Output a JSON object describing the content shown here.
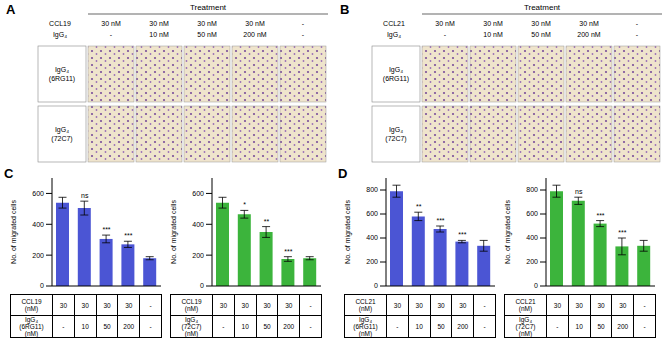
{
  "figure": {
    "image_panels": [
      {
        "letter": "A",
        "header": "Treatment",
        "row_names": [
          "CCL19",
          "IgG₄"
        ],
        "columns": [
          [
            "30 nM",
            "-"
          ],
          [
            "30 nM",
            "10 nM"
          ],
          [
            "30 nM",
            "50 nM"
          ],
          [
            "30 nM",
            "200 nM"
          ],
          [
            "-",
            "-"
          ]
        ],
        "rows": [
          "IgG₄ (6RG11)",
          "IgG₄ (72C7)"
        ]
      },
      {
        "letter": "B",
        "header": "Treatment",
        "row_names": [
          "CCL21",
          "IgG₄"
        ],
        "columns": [
          [
            "30 nM",
            "-"
          ],
          [
            "30 nM",
            "10 nM"
          ],
          [
            "30 nM",
            "50 nM"
          ],
          [
            "30 nM",
            "200 nM"
          ],
          [
            "-",
            "-"
          ]
        ],
        "rows": [
          "IgG₄ (6RG11)",
          "IgG₄ (72C7)"
        ]
      }
    ],
    "chart_panels": [
      "C",
      "D"
    ]
  },
  "chart_data": [
    {
      "type": "bar",
      "y_label": "No. of migrated cells",
      "values": [
        540,
        505,
        305,
        270,
        180
      ],
      "errors": [
        35,
        45,
        25,
        20,
        10
      ],
      "significance": [
        null,
        "ns",
        "***",
        "***",
        null
      ],
      "color": "#4b55d4",
      "ylim": [
        0,
        700
      ],
      "yticks": [
        0,
        200,
        400,
        600
      ],
      "tick_labels": "y",
      "table": [
        {
          "label": "CCL19 (nM)",
          "cells": [
            30,
            30,
            30,
            30,
            "-"
          ]
        },
        {
          "label": "IgG₄ (6RG11) (nM)",
          "cells": [
            "-",
            10,
            50,
            200,
            "-"
          ]
        }
      ]
    },
    {
      "type": "bar",
      "y_label": "No. of migrated cells",
      "values": [
        540,
        465,
        350,
        175,
        180
      ],
      "errors": [
        35,
        25,
        35,
        15,
        10
      ],
      "significance": [
        null,
        "*",
        "**",
        "***",
        null
      ],
      "color": "#3cb43c",
      "ylim": [
        0,
        700
      ],
      "yticks": [
        0,
        200,
        400,
        600
      ],
      "tick_labels": "y",
      "table": [
        {
          "label": "CCL19 (nM)",
          "cells": [
            30,
            30,
            30,
            30,
            "-"
          ]
        },
        {
          "label": "IgG₄ (72C7) (nM)",
          "cells": [
            "-",
            10,
            50,
            200,
            "-"
          ]
        }
      ]
    },
    {
      "type": "bar",
      "y_label": "No. of migrated cells",
      "values": [
        790,
        580,
        475,
        370,
        335
      ],
      "errors": [
        50,
        35,
        25,
        10,
        45
      ],
      "significance": [
        null,
        "**",
        "***",
        "***",
        null
      ],
      "color": "#4b55d4",
      "ylim": [
        0,
        900
      ],
      "yticks": [
        0,
        200,
        400,
        600,
        800
      ],
      "tick_labels": "y",
      "table": [
        {
          "label": "CCL21 (nM)",
          "cells": [
            30,
            30,
            30,
            30,
            "-"
          ]
        },
        {
          "label": "IgG₄ (6RG11) (nM)",
          "cells": [
            "-",
            10,
            50,
            200,
            "-"
          ]
        }
      ]
    },
    {
      "type": "bar",
      "y_label": "No. of migrated cells",
      "values": [
        790,
        710,
        520,
        330,
        335
      ],
      "errors": [
        50,
        30,
        25,
        70,
        45
      ],
      "significance": [
        null,
        "ns",
        "***",
        "***",
        null
      ],
      "color": "#3cb43c",
      "ylim": [
        0,
        900
      ],
      "yticks": [
        0,
        200,
        400,
        600,
        800
      ],
      "tick_labels": "y",
      "table": [
        {
          "label": "CCL21 (nM)",
          "cells": [
            30,
            30,
            30,
            30,
            "-"
          ]
        },
        {
          "label": "IgG₄ (72C7) (nM)",
          "cells": [
            "-",
            10,
            50,
            200,
            "-"
          ]
        }
      ]
    }
  ]
}
